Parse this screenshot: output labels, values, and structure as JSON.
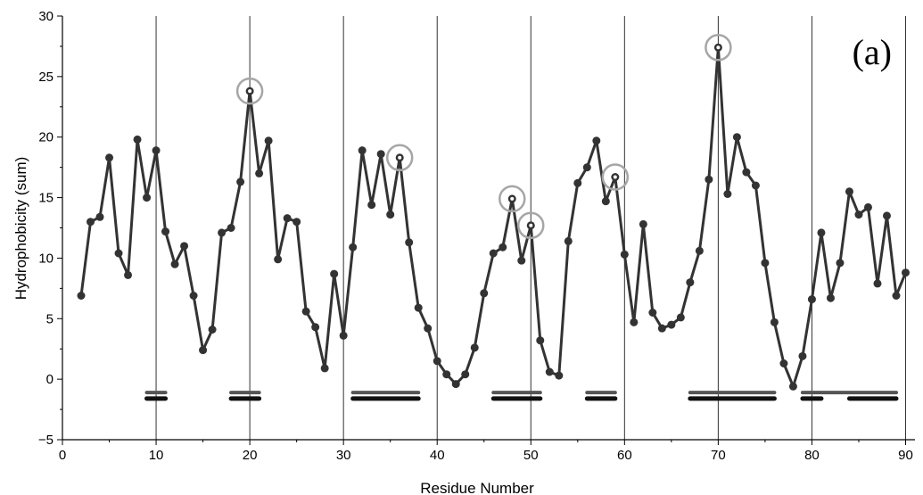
{
  "chart_data": {
    "type": "line",
    "panel_label": "(a)",
    "xlabel": "Residue Number",
    "ylabel": "Hydrophobicity (sum)",
    "xlim": [
      0,
      91
    ],
    "ylim": [
      -5,
      30
    ],
    "x_ticks": [
      0,
      10,
      20,
      30,
      40,
      50,
      60,
      70,
      80,
      90
    ],
    "y_ticks": [
      -5,
      0,
      5,
      10,
      15,
      20,
      25,
      30
    ],
    "vertical_gridlines": [
      10,
      20,
      30,
      40,
      50,
      60,
      70,
      80,
      90
    ],
    "series": [
      {
        "x": [
          2,
          3,
          4,
          5,
          6,
          7,
          8,
          9,
          10,
          11,
          12,
          13,
          14,
          15,
          16,
          17,
          18,
          19,
          20,
          21,
          22,
          23,
          24,
          25,
          26,
          27,
          28,
          29,
          30,
          31,
          32,
          33,
          34,
          35,
          36,
          37,
          38,
          39,
          40,
          41,
          42,
          43,
          44,
          45,
          46,
          47,
          48,
          49,
          50,
          51,
          52,
          53,
          54,
          55,
          56,
          57,
          58,
          59,
          60,
          61,
          62,
          63,
          64,
          65,
          66,
          67,
          68,
          69,
          70,
          71,
          72,
          73,
          74,
          75,
          76,
          77,
          78,
          79,
          80,
          81,
          82,
          83,
          84,
          85,
          86,
          87,
          88,
          89,
          90
        ],
        "y": [
          6.9,
          13.0,
          13.4,
          18.3,
          10.4,
          8.6,
          19.8,
          15.0,
          18.9,
          12.2,
          9.5,
          11.0,
          6.9,
          2.4,
          4.1,
          12.1,
          12.5,
          16.3,
          23.8,
          17.0,
          19.7,
          9.9,
          13.3,
          13.0,
          5.6,
          4.3,
          0.9,
          8.7,
          3.6,
          10.9,
          18.9,
          14.4,
          18.6,
          13.6,
          18.3,
          11.3,
          5.9,
          4.2,
          1.5,
          0.4,
          -0.4,
          0.4,
          2.6,
          7.1,
          10.4,
          10.9,
          14.9,
          9.8,
          12.7,
          3.2,
          0.6,
          0.3,
          11.4,
          16.2,
          17.5,
          19.7,
          14.7,
          16.7,
          10.3,
          4.7,
          12.8,
          5.5,
          4.2,
          4.5,
          5.1,
          8.0,
          10.6,
          16.5,
          27.4,
          15.3,
          20.0,
          17.1,
          16.0,
          9.6,
          4.7,
          1.3,
          -0.6,
          1.9,
          6.6,
          12.1,
          6.7,
          9.6,
          15.5,
          13.6,
          14.2,
          7.9,
          13.5,
          6.9,
          8.8
        ],
        "color": "#333333"
      }
    ],
    "highlighted_points": [
      {
        "x": 20,
        "y": 23.8
      },
      {
        "x": 36,
        "y": 18.3
      },
      {
        "x": 48,
        "y": 14.9
      },
      {
        "x": 50,
        "y": 12.7
      },
      {
        "x": 59,
        "y": 16.7
      },
      {
        "x": 70,
        "y": 27.4
      }
    ],
    "segment_bars_upper": [
      {
        "start": 9,
        "end": 11
      },
      {
        "start": 18,
        "end": 21
      },
      {
        "start": 31,
        "end": 38
      },
      {
        "start": 46,
        "end": 51
      },
      {
        "start": 56,
        "end": 59
      },
      {
        "start": 67,
        "end": 76
      },
      {
        "start": 79,
        "end": 89
      }
    ],
    "segment_bars_lower": [
      {
        "start": 9,
        "end": 11
      },
      {
        "start": 18,
        "end": 21
      },
      {
        "start": 31,
        "end": 38
      },
      {
        "start": 46,
        "end": 51
      },
      {
        "start": 56,
        "end": 59
      },
      {
        "start": 67,
        "end": 76
      },
      {
        "start": 79,
        "end": 81
      },
      {
        "start": 84,
        "end": 89
      }
    ],
    "bar_y_upper": -1.1,
    "bar_y_lower": -1.6,
    "colors": {
      "line": "#333333",
      "marker": "#333333",
      "highlight_ring": "#a6a6a6",
      "bar_upper": "#555555",
      "bar_lower": "#111111",
      "gridline": "#333333"
    }
  }
}
